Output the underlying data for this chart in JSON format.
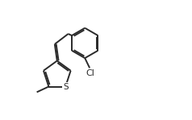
{
  "background_color": "#ffffff",
  "line_color": "#2a2a2a",
  "line_width": 1.4,
  "text_color": "#2a2a2a",
  "font_size": 7.5,
  "S_label": "S",
  "Cl_label": "Cl",
  "figsize": [
    2.38,
    1.49
  ],
  "dpi": 100,
  "xlim": [
    0.0,
    10.5
  ],
  "ylim": [
    1.0,
    8.5
  ]
}
